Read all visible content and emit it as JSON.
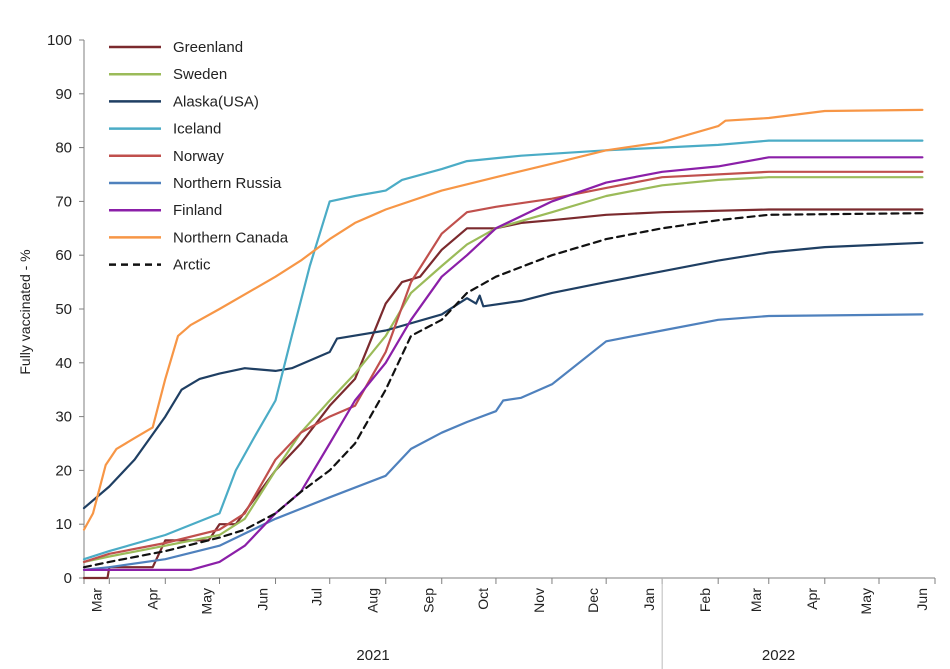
{
  "chart_data": {
    "type": "line",
    "ylabel": "Fully vaccinated - %",
    "ylim": [
      0,
      100
    ],
    "yticks": [
      0,
      10,
      20,
      30,
      40,
      50,
      60,
      70,
      80,
      90,
      100
    ],
    "x_months": [
      "Mar",
      "Apr",
      "May",
      "Jun",
      "Jul",
      "Aug",
      "Sep",
      "Oct",
      "Nov",
      "Dec",
      "Jan",
      "Feb",
      "Mar",
      "Apr",
      "May",
      "Jun"
    ],
    "x_years": [
      "2021",
      "2022"
    ],
    "xlim": [
      "2021-02-15",
      "2022-06-01"
    ],
    "grid": false,
    "legend_position": "top-left",
    "series": [
      {
        "name": "Greenland",
        "color": "#7b2a2e",
        "dash": false,
        "points": [
          [
            "2021-02-15",
            0
          ],
          [
            "2021-02-28",
            0
          ],
          [
            "2021-03-01",
            2
          ],
          [
            "2021-03-25",
            2
          ],
          [
            "2021-04-01",
            7
          ],
          [
            "2021-04-25",
            7
          ],
          [
            "2021-05-01",
            10
          ],
          [
            "2021-05-10",
            10
          ],
          [
            "2021-06-01",
            20
          ],
          [
            "2021-06-15",
            25
          ],
          [
            "2021-07-01",
            32
          ],
          [
            "2021-07-15",
            37
          ],
          [
            "2021-08-01",
            51
          ],
          [
            "2021-08-10",
            55
          ],
          [
            "2021-08-20",
            56
          ],
          [
            "2021-09-01",
            61
          ],
          [
            "2021-09-15",
            65
          ],
          [
            "2021-10-01",
            65
          ],
          [
            "2021-10-15",
            66
          ],
          [
            "2021-11-01",
            66.5
          ],
          [
            "2021-12-01",
            67.5
          ],
          [
            "2022-01-01",
            68
          ],
          [
            "2022-03-01",
            68.5
          ],
          [
            "2022-05-25",
            68.5
          ]
        ]
      },
      {
        "name": "Sweden",
        "color": "#9bbb59",
        "dash": false,
        "points": [
          [
            "2021-02-15",
            3
          ],
          [
            "2021-03-01",
            4
          ],
          [
            "2021-04-01",
            6
          ],
          [
            "2021-05-01",
            8
          ],
          [
            "2021-05-15",
            11
          ],
          [
            "2021-06-01",
            20
          ],
          [
            "2021-06-15",
            27
          ],
          [
            "2021-07-01",
            33
          ],
          [
            "2021-07-15",
            38
          ],
          [
            "2021-08-01",
            45
          ],
          [
            "2021-08-15",
            53
          ],
          [
            "2021-09-01",
            58
          ],
          [
            "2021-09-15",
            62
          ],
          [
            "2021-10-01",
            65
          ],
          [
            "2021-11-01",
            68
          ],
          [
            "2021-12-01",
            71
          ],
          [
            "2022-01-01",
            73
          ],
          [
            "2022-02-01",
            74
          ],
          [
            "2022-03-01",
            74.5
          ],
          [
            "2022-05-25",
            74.5
          ]
        ]
      },
      {
        "name": "Alaska(USA)",
        "color": "#1f3f63",
        "dash": false,
        "points": [
          [
            "2021-02-15",
            13
          ],
          [
            "2021-03-01",
            17
          ],
          [
            "2021-03-15",
            22
          ],
          [
            "2021-04-01",
            30
          ],
          [
            "2021-04-10",
            35
          ],
          [
            "2021-04-20",
            37
          ],
          [
            "2021-05-01",
            38
          ],
          [
            "2021-05-15",
            39
          ],
          [
            "2021-06-01",
            38.5
          ],
          [
            "2021-06-10",
            39
          ],
          [
            "2021-07-01",
            42
          ],
          [
            "2021-07-05",
            44.5
          ],
          [
            "2021-08-01",
            46
          ],
          [
            "2021-09-01",
            49
          ],
          [
            "2021-09-15",
            52
          ],
          [
            "2021-09-20",
            51
          ],
          [
            "2021-09-22",
            52.5
          ],
          [
            "2021-09-24",
            50.5
          ],
          [
            "2021-10-15",
            51.5
          ],
          [
            "2021-11-01",
            53
          ],
          [
            "2021-12-01",
            55
          ],
          [
            "2022-01-01",
            57
          ],
          [
            "2022-02-01",
            59
          ],
          [
            "2022-03-01",
            60.5
          ],
          [
            "2022-04-01",
            61.5
          ],
          [
            "2022-05-25",
            62.3
          ]
        ]
      },
      {
        "name": "Iceland",
        "color": "#4bacc6",
        "dash": false,
        "points": [
          [
            "2021-02-15",
            3.5
          ],
          [
            "2021-03-01",
            5
          ],
          [
            "2021-04-01",
            8
          ],
          [
            "2021-05-01",
            12
          ],
          [
            "2021-05-10",
            20
          ],
          [
            "2021-05-20",
            26
          ],
          [
            "2021-06-01",
            33
          ],
          [
            "2021-06-10",
            45
          ],
          [
            "2021-06-20",
            58
          ],
          [
            "2021-07-01",
            70
          ],
          [
            "2021-07-15",
            71
          ],
          [
            "2021-08-01",
            72
          ],
          [
            "2021-08-10",
            74
          ],
          [
            "2021-09-01",
            76
          ],
          [
            "2021-09-15",
            77.5
          ],
          [
            "2021-10-15",
            78.5
          ],
          [
            "2021-12-01",
            79.5
          ],
          [
            "2022-01-01",
            80
          ],
          [
            "2022-02-01",
            80.5
          ],
          [
            "2022-03-01",
            81.3
          ],
          [
            "2022-05-25",
            81.3
          ]
        ]
      },
      {
        "name": "Norway",
        "color": "#c0504d",
        "dash": false,
        "points": [
          [
            "2021-02-15",
            3
          ],
          [
            "2021-03-01",
            4.5
          ],
          [
            "2021-04-01",
            6.5
          ],
          [
            "2021-05-01",
            9
          ],
          [
            "2021-05-15",
            12
          ],
          [
            "2021-06-01",
            22
          ],
          [
            "2021-06-15",
            27
          ],
          [
            "2021-07-01",
            30
          ],
          [
            "2021-07-15",
            32
          ],
          [
            "2021-08-01",
            42
          ],
          [
            "2021-08-15",
            55
          ],
          [
            "2021-09-01",
            64
          ],
          [
            "2021-09-15",
            68
          ],
          [
            "2021-10-01",
            69
          ],
          [
            "2021-11-01",
            70.5
          ],
          [
            "2021-12-01",
            72.5
          ],
          [
            "2022-01-01",
            74.5
          ],
          [
            "2022-03-01",
            75.5
          ],
          [
            "2022-05-25",
            75.5
          ]
        ]
      },
      {
        "name": "Northern Russia",
        "color": "#4f81bd",
        "dash": false,
        "points": [
          [
            "2021-02-15",
            1.5
          ],
          [
            "2021-03-01",
            2
          ],
          [
            "2021-04-01",
            3.5
          ],
          [
            "2021-05-01",
            6
          ],
          [
            "2021-06-01",
            11
          ],
          [
            "2021-07-01",
            15
          ],
          [
            "2021-08-01",
            19
          ],
          [
            "2021-08-15",
            24
          ],
          [
            "2021-09-01",
            27
          ],
          [
            "2021-09-15",
            29
          ],
          [
            "2021-10-01",
            31
          ],
          [
            "2021-10-05",
            33
          ],
          [
            "2021-10-15",
            33.5
          ],
          [
            "2021-11-01",
            36
          ],
          [
            "2021-12-01",
            44
          ],
          [
            "2022-01-01",
            46
          ],
          [
            "2022-02-01",
            48
          ],
          [
            "2022-03-01",
            48.7
          ],
          [
            "2022-05-25",
            49
          ]
        ]
      },
      {
        "name": "Finland",
        "color": "#8b1fa8",
        "dash": false,
        "points": [
          [
            "2021-02-15",
            1.5
          ],
          [
            "2021-04-15",
            1.5
          ],
          [
            "2021-05-01",
            3
          ],
          [
            "2021-05-15",
            6
          ],
          [
            "2021-06-01",
            12
          ],
          [
            "2021-06-15",
            16
          ],
          [
            "2021-07-01",
            25
          ],
          [
            "2021-07-15",
            33
          ],
          [
            "2021-08-01",
            40
          ],
          [
            "2021-08-15",
            48
          ],
          [
            "2021-09-01",
            56
          ],
          [
            "2021-09-15",
            60
          ],
          [
            "2021-10-01",
            65
          ],
          [
            "2021-11-01",
            70
          ],
          [
            "2021-12-01",
            73.5
          ],
          [
            "2022-01-01",
            75.5
          ],
          [
            "2022-02-01",
            76.5
          ],
          [
            "2022-03-01",
            78.2
          ],
          [
            "2022-05-25",
            78.2
          ]
        ]
      },
      {
        "name": "Northern Canada",
        "color": "#f79646",
        "dash": false,
        "points": [
          [
            "2021-02-15",
            9
          ],
          [
            "2021-02-20",
            12
          ],
          [
            "2021-02-27",
            21
          ],
          [
            "2021-03-05",
            24
          ],
          [
            "2021-03-15",
            26
          ],
          [
            "2021-03-25",
            28
          ],
          [
            "2021-04-01",
            37
          ],
          [
            "2021-04-08",
            45
          ],
          [
            "2021-04-15",
            47
          ],
          [
            "2021-05-01",
            50
          ],
          [
            "2021-06-01",
            56
          ],
          [
            "2021-06-15",
            59
          ],
          [
            "2021-07-01",
            63
          ],
          [
            "2021-07-15",
            66
          ],
          [
            "2021-08-01",
            68.5
          ],
          [
            "2021-09-01",
            72
          ],
          [
            "2021-10-01",
            74.5
          ],
          [
            "2021-11-01",
            77
          ],
          [
            "2021-12-01",
            79.5
          ],
          [
            "2022-01-01",
            81
          ],
          [
            "2022-02-01",
            84
          ],
          [
            "2022-02-05",
            85
          ],
          [
            "2022-03-01",
            85.5
          ],
          [
            "2022-04-01",
            86.8
          ],
          [
            "2022-05-25",
            87
          ]
        ]
      },
      {
        "name": "Arctic",
        "color": "#111111",
        "dash": true,
        "points": [
          [
            "2021-02-15",
            2
          ],
          [
            "2021-03-01",
            3
          ],
          [
            "2021-04-01",
            5
          ],
          [
            "2021-05-01",
            7.5
          ],
          [
            "2021-05-15",
            9
          ],
          [
            "2021-06-01",
            12
          ],
          [
            "2021-06-15",
            16
          ],
          [
            "2021-07-01",
            20
          ],
          [
            "2021-07-15",
            25
          ],
          [
            "2021-08-01",
            35
          ],
          [
            "2021-08-15",
            45
          ],
          [
            "2021-09-01",
            48
          ],
          [
            "2021-09-15",
            53
          ],
          [
            "2021-10-01",
            56
          ],
          [
            "2021-11-01",
            60
          ],
          [
            "2021-12-01",
            63
          ],
          [
            "2022-01-01",
            65
          ],
          [
            "2022-02-01",
            66.5
          ],
          [
            "2022-03-01",
            67.5
          ],
          [
            "2022-05-25",
            67.8
          ]
        ]
      }
    ]
  }
}
